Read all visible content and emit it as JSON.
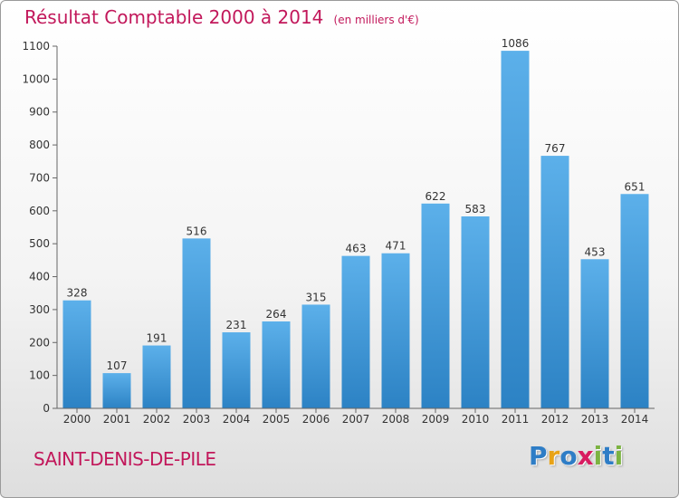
{
  "header": {
    "title": "Résultat Comptable 2000 à 2014",
    "subtitle": "(en milliers d'€)"
  },
  "footer": {
    "commune": "SAINT-DENIS-DE-PILE",
    "logo": "Proxiti",
    "logo_letters": [
      {
        "char": "P",
        "color": "#2e7dc6"
      },
      {
        "char": "r",
        "color": "#e8a317"
      },
      {
        "char": "o",
        "color": "#2e7dc6"
      },
      {
        "char": "x",
        "color": "#d81b60"
      },
      {
        "char": "i",
        "color": "#7cb342"
      },
      {
        "char": "t",
        "color": "#2e7dc6"
      },
      {
        "char": "i",
        "color": "#7cb342"
      }
    ]
  },
  "chart_data": {
    "type": "bar",
    "title": "Résultat Comptable 2000 à 2014",
    "subtitle": "(en milliers d'€)",
    "xlabel": "",
    "ylabel": "",
    "categories": [
      "2000",
      "2001",
      "2002",
      "2003",
      "2004",
      "2005",
      "2006",
      "2007",
      "2008",
      "2009",
      "2010",
      "2011",
      "2012",
      "2013",
      "2014"
    ],
    "values": [
      328,
      107,
      191,
      516,
      231,
      264,
      315,
      463,
      471,
      622,
      583,
      1086,
      767,
      453,
      651
    ],
    "ylim": [
      0,
      1100
    ],
    "yticks": [
      0,
      100,
      200,
      300,
      400,
      500,
      600,
      700,
      800,
      900,
      1000,
      1100
    ],
    "grid": false,
    "colors": {
      "bar_light": "#5aace6",
      "bar_dark": "#2f86c8",
      "title": "#c2185b"
    }
  }
}
